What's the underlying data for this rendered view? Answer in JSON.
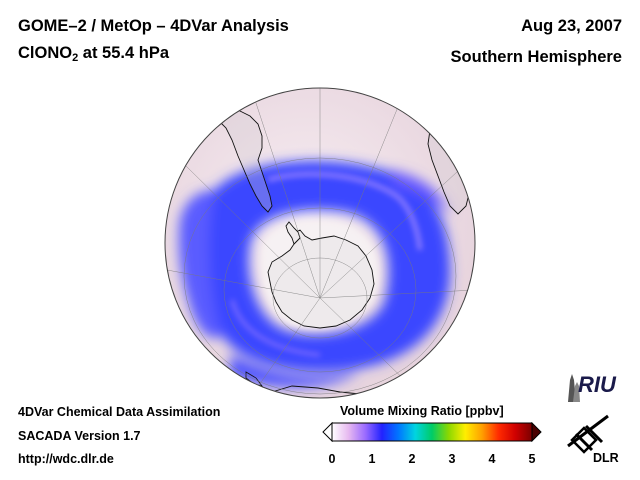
{
  "header": {
    "title_line1": "GOME–2 / MetOp – 4DVar Analysis",
    "species_main": "ClONO",
    "species_sub": "2",
    "species_rest": " at 55.4 hPa",
    "date": "Aug 23, 2007",
    "hemisphere": "Southern Hemisphere"
  },
  "footer": {
    "line1": "4DVar Chemical Data Assimilation",
    "line2": "SACADA Version 1.7",
    "line3": "http://wdc.dlr.de"
  },
  "colorbar": {
    "title": "Volume Mixing Ratio [ppbv]",
    "ticks": [
      "0",
      "1",
      "2",
      "3",
      "4",
      "5"
    ],
    "range": [
      0,
      5
    ],
    "colors": [
      "#ffffff",
      "#e6b8f0",
      "#9a6bff",
      "#2222ff",
      "#0077ff",
      "#00d4e0",
      "#00cc66",
      "#8cd800",
      "#ffee00",
      "#ffa000",
      "#ff2a00",
      "#d00000",
      "#7a0000"
    ]
  },
  "logos": {
    "riu": "RIU",
    "dlr": "DLR"
  },
  "map": {
    "projection": "orthographic, south polar view",
    "quantity": "ClONO2",
    "pressure_hPa": 55.4,
    "land_color": "#c8c8c8",
    "ocean_color": "#f2e6ec",
    "high_color": "#3a44ff",
    "depleted_core_color": "#f5f0f2"
  }
}
